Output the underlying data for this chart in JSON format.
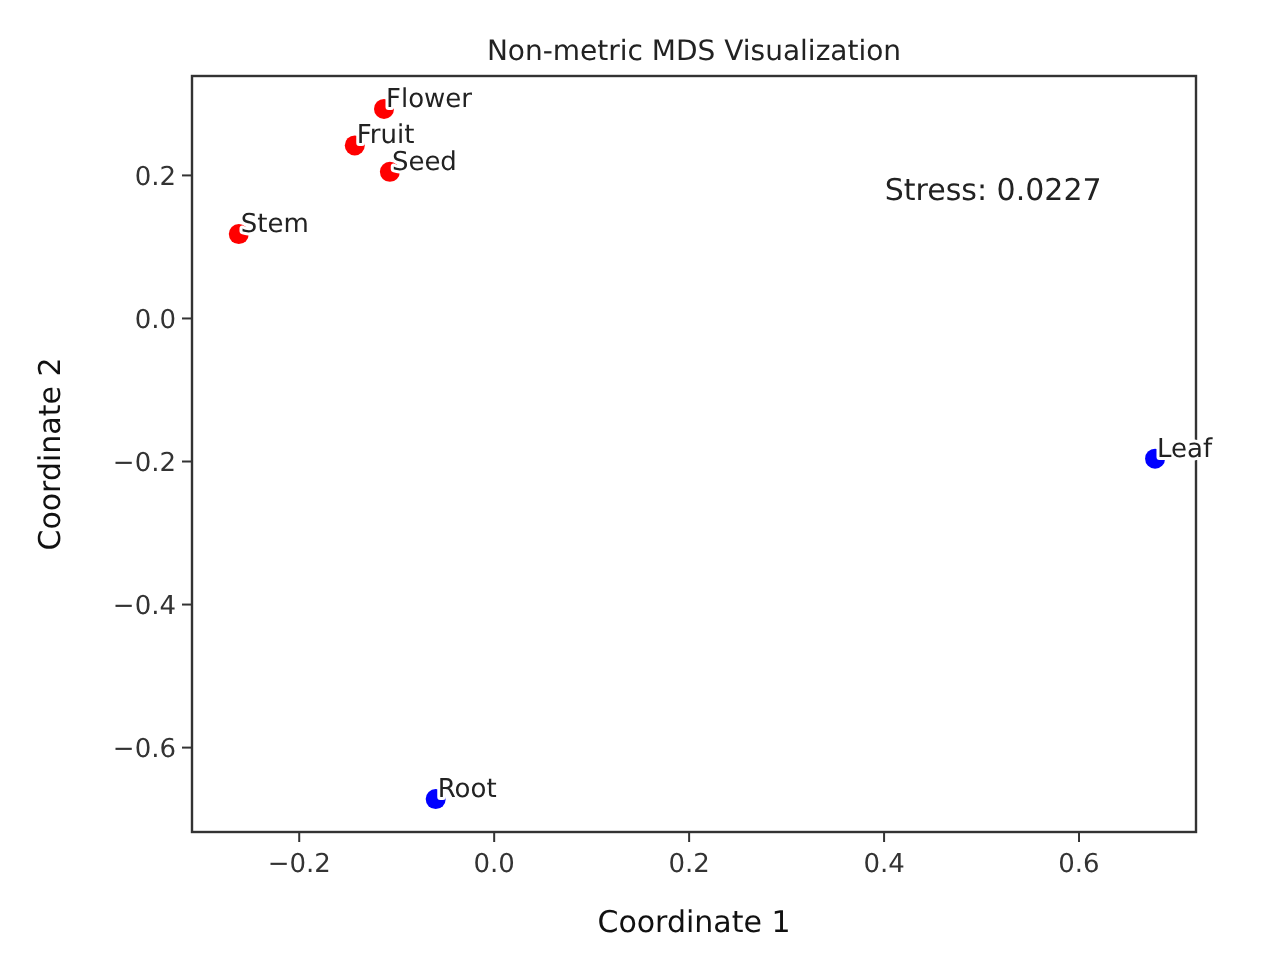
{
  "chart_data": {
    "type": "scatter",
    "title": "Non-metric MDS Visualization",
    "xlabel": "Coordinate 1",
    "ylabel": "Coordinate 2",
    "series": [
      {
        "color": "#ff0000",
        "x": [
          -0.113,
          -0.143,
          -0.107,
          -0.262
        ],
        "values": [
          0.293,
          0.242,
          0.205,
          0.118
        ]
      },
      {
        "color": "#0000ff",
        "x": [
          -0.06,
          0.678
        ],
        "values": [
          -0.672,
          -0.196
        ]
      }
    ],
    "annotations": [
      {
        "text": "Flower",
        "x": -0.113,
        "y": 0.293
      },
      {
        "text": "Fruit",
        "x": -0.143,
        "y": 0.242
      },
      {
        "text": "Seed",
        "x": -0.107,
        "y": 0.205
      },
      {
        "text": "Stem",
        "x": -0.262,
        "y": 0.118
      },
      {
        "text": "Root",
        "x": -0.06,
        "y": -0.672
      },
      {
        "text": "Leaf",
        "x": 0.678,
        "y": -0.196
      },
      "Stress: 0.0227"
    ],
    "xlim": [
      -0.31,
      0.72
    ],
    "ylim": [
      -0.718,
      0.339
    ],
    "xticks": [
      {
        "value": -0.2,
        "label": "−0.2"
      },
      {
        "value": 0,
        "label": "0.0"
      },
      {
        "value": 0.2,
        "label": "0.2"
      },
      {
        "value": 0.4,
        "label": "0.4"
      },
      {
        "value": 0.6,
        "label": "0.6"
      }
    ],
    "yticks": [
      {
        "value": -0.6,
        "label": "−0.6"
      },
      {
        "value": -0.4,
        "label": "−0.4"
      },
      {
        "value": -0.2,
        "label": "−0.2"
      },
      {
        "value": 0,
        "label": "0.0"
      },
      {
        "value": 0.2,
        "label": "0.2"
      }
    ],
    "grid": false,
    "marker": "circle"
  }
}
